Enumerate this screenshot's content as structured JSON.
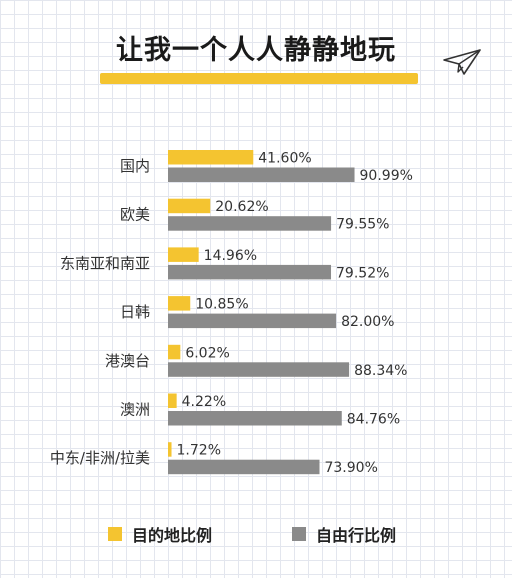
{
  "colors": {
    "destination": "#f4c430",
    "independent": "#8a8a8a"
  },
  "chart_data": {
    "type": "bar",
    "orientation": "horizontal",
    "title": "让我一个人人静静地玩",
    "categories": [
      "国内",
      "欧美",
      "东南亚和南亚",
      "日韩",
      "港澳台",
      "澳洲",
      "中东/非洲/拉美"
    ],
    "series": [
      {
        "name": "目的地比例",
        "values": [
          41.6,
          20.62,
          14.96,
          10.85,
          6.02,
          4.22,
          1.72
        ],
        "labels": [
          "41.60%",
          "20.62%",
          "14.96%",
          "10.85%",
          "6.02%",
          "4.22%",
          "1.72%"
        ]
      },
      {
        "name": "自由行比例",
        "values": [
          90.99,
          79.55,
          79.52,
          82.0,
          88.34,
          84.76,
          73.9
        ],
        "labels": [
          "90.99%",
          "79.55%",
          "79.52%",
          "82.00%",
          "88.34%",
          "84.76%",
          "73.90%"
        ]
      }
    ],
    "xlim": [
      0,
      100
    ],
    "grid": false,
    "legend_position": "bottom"
  }
}
